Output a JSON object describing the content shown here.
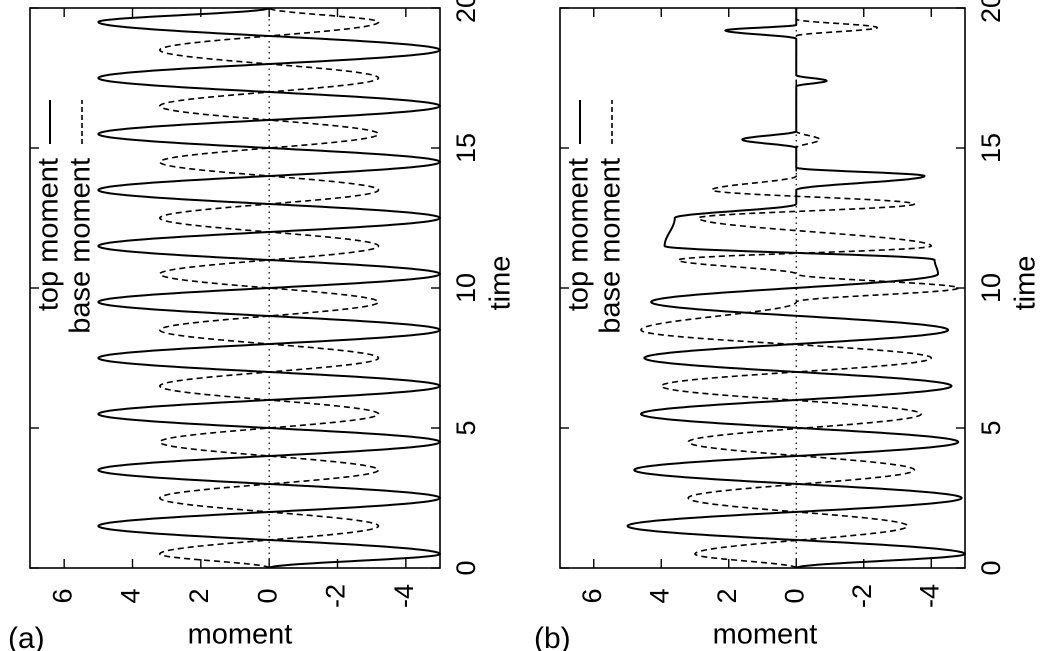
{
  "chart_data": [
    {
      "type": "line",
      "panel_label": "(a)",
      "orientation": "rotated-90-ccw",
      "xlabel": "time",
      "ylabel": "moment",
      "xlim": [
        0,
        20
      ],
      "ylim": [
        -5,
        7
      ],
      "x_ticks": [
        0,
        5,
        10,
        15,
        20
      ],
      "y_ticks": [
        6,
        4,
        2,
        0,
        -2,
        -4
      ],
      "zero_line": "dotted",
      "legend": "top-right",
      "series": [
        {
          "name": "top moment",
          "style": "solid",
          "color": "#000000",
          "x": [
            0,
            0.5,
            1.5,
            2.5,
            3.5,
            4.5,
            5.5,
            6.5,
            7.5,
            8.5,
            9.5,
            10.5,
            11.5,
            12.5,
            13.5,
            14.5,
            15.5,
            16.5,
            17.5,
            18.5,
            19.5,
            20
          ],
          "values": [
            0,
            -5,
            5,
            -5,
            5,
            -5,
            5,
            -5,
            5,
            -5,
            5,
            -5,
            5,
            -5,
            5,
            -5,
            5,
            -5,
            5,
            -5,
            5,
            0
          ],
          "peak_sharpness": 1.6
        },
        {
          "name": "base moment",
          "style": "dashed",
          "color": "#000000",
          "x": [
            0,
            0.5,
            1.5,
            2.5,
            3.5,
            4.5,
            5.5,
            6.5,
            7.5,
            8.5,
            9.5,
            10.5,
            11.5,
            12.5,
            13.5,
            14.5,
            15.5,
            16.5,
            17.5,
            18.5,
            19.5,
            20
          ],
          "values": [
            0,
            3.2,
            -3.2,
            3.2,
            -3.2,
            3.2,
            -3.2,
            3.2,
            -3.2,
            3.2,
            -3.2,
            3.2,
            -3.2,
            3.2,
            -3.2,
            3.2,
            -3.2,
            3.2,
            -3.2,
            3.2,
            -3.2,
            0
          ],
          "peak_sharpness": 1.1
        }
      ]
    },
    {
      "type": "line",
      "panel_label": "(b)",
      "orientation": "rotated-90-ccw",
      "xlabel": "time",
      "ylabel": "moment",
      "xlim": [
        0,
        20
      ],
      "ylim": [
        -5,
        7
      ],
      "x_ticks": [
        0,
        5,
        10,
        15,
        20
      ],
      "y_ticks": [
        6,
        4,
        2,
        0,
        -2,
        -4
      ],
      "zero_line": "dotted",
      "legend": "top-right",
      "series": [
        {
          "name": "top moment",
          "style": "solid",
          "color": "#000000",
          "x": [
            0,
            0.5,
            1.5,
            2.5,
            3.5,
            4.5,
            5.5,
            6.5,
            7.5,
            8.5,
            9.5,
            10.5,
            11.0,
            11.5,
            12.5,
            13.0,
            13.5,
            14.0,
            14.3,
            15.0,
            15.3,
            15.6,
            15.9,
            17.2,
            17.4,
            17.6,
            18.9,
            19.2,
            19.4,
            20
          ],
          "values": [
            0,
            -5,
            5,
            -4.9,
            4.8,
            -4.8,
            4.6,
            -4.6,
            4.5,
            -4.5,
            4.3,
            -4.2,
            -4.1,
            3.9,
            3.6,
            0,
            0,
            -3.8,
            0,
            0,
            1.6,
            0,
            0,
            0,
            -0.9,
            0,
            0,
            2.1,
            0,
            0
          ],
          "peak_sharpness": 1.8
        },
        {
          "name": "base moment",
          "style": "dashed",
          "color": "#000000",
          "x": [
            0,
            0.5,
            1.5,
            2.5,
            3.5,
            4.5,
            5.5,
            6.5,
            7.5,
            8.5,
            9.5,
            10.0,
            10.5,
            11.0,
            11.5,
            12.5,
            13.0,
            13.5,
            14.0,
            15.0,
            15.3,
            15.6,
            19.0,
            19.3,
            19.6,
            20
          ],
          "values": [
            0,
            3.0,
            -3.3,
            3.2,
            -3.5,
            3.2,
            -3.7,
            4.0,
            -4.0,
            4.6,
            0,
            -4.8,
            0,
            3.5,
            -4.0,
            2.9,
            -3.5,
            2.5,
            0,
            0,
            -0.7,
            0,
            0,
            -2.4,
            0,
            0
          ],
          "peak_sharpness": 1.1
        }
      ]
    }
  ]
}
